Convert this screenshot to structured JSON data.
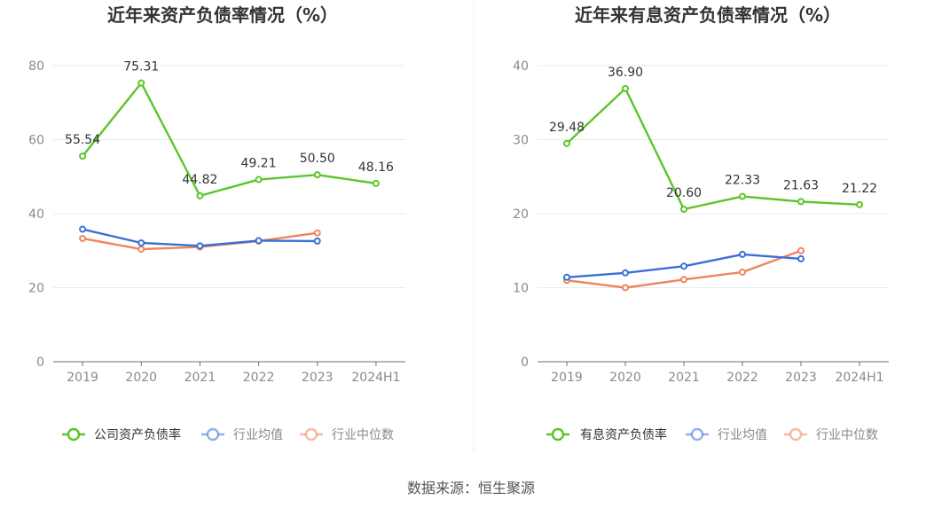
{
  "source_label": "数据来源：恒生聚源",
  "chart_data": [
    {
      "type": "line",
      "title": "近年来资产负债率情况（%）",
      "categories": [
        "2019",
        "2020",
        "2021",
        "2022",
        "2023",
        "2024H1"
      ],
      "ylim": [
        0,
        80
      ],
      "yticks": [
        0,
        20,
        40,
        60,
        80
      ],
      "grid": true,
      "legend_position": "bottom",
      "series": [
        {
          "name": "公司资产负债率",
          "color": "#5cc529",
          "values": [
            55.54,
            75.31,
            44.82,
            49.21,
            50.5,
            48.16
          ],
          "labels": [
            "55.54",
            "75.31",
            "44.82",
            "49.21",
            "50.50",
            "48.16"
          ]
        },
        {
          "name": "行业均值",
          "color": "#3a6fd8",
          "values": [
            35.8,
            32.1,
            31.3,
            32.7,
            32.6,
            null
          ]
        },
        {
          "name": "行业中位数",
          "color": "#f0845c",
          "values": [
            33.3,
            30.4,
            31.0,
            32.6,
            34.8,
            null
          ]
        }
      ]
    },
    {
      "type": "line",
      "title": "近年来有息资产负债率情况（%）",
      "categories": [
        "2019",
        "2020",
        "2021",
        "2022",
        "2023",
        "2024H1"
      ],
      "ylim": [
        0,
        40
      ],
      "yticks": [
        0,
        10,
        20,
        30,
        40
      ],
      "grid": true,
      "legend_position": "bottom",
      "series": [
        {
          "name": "有息资产负债率",
          "color": "#5cc529",
          "values": [
            29.48,
            36.9,
            20.6,
            22.33,
            21.63,
            21.22
          ],
          "labels": [
            "29.48",
            "36.90",
            "20.60",
            "22.33",
            "21.63",
            "21.22"
          ]
        },
        {
          "name": "行业均值",
          "color": "#3a6fd8",
          "values": [
            11.4,
            12.0,
            12.9,
            14.5,
            13.9,
            null
          ]
        },
        {
          "name": "行业中位数",
          "color": "#f0845c",
          "values": [
            11.0,
            10.0,
            11.1,
            12.1,
            15.0,
            null
          ]
        }
      ]
    }
  ]
}
